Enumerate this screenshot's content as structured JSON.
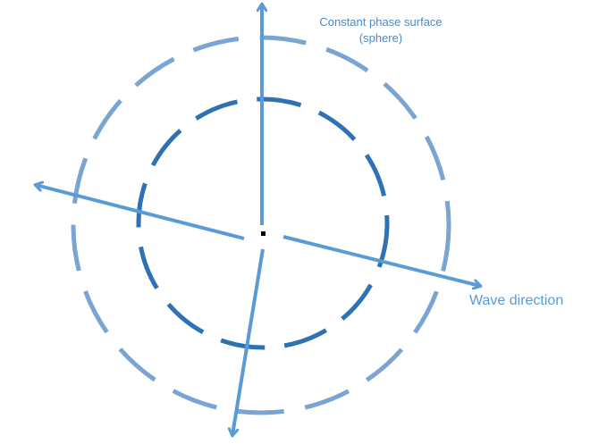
{
  "labels": {
    "surface_line1": "Constant phase surface",
    "surface_line2": "(sphere)",
    "wave_direction": "Wave direction"
  },
  "colors": {
    "outer_circle": "#7aa4d1",
    "inner_circle": "#2f72b3",
    "arrows": "#5b9bd5",
    "label_text": "#4f8ac6",
    "wave_label_text": "#5b9bd5",
    "center_dot": "#000000"
  }
}
